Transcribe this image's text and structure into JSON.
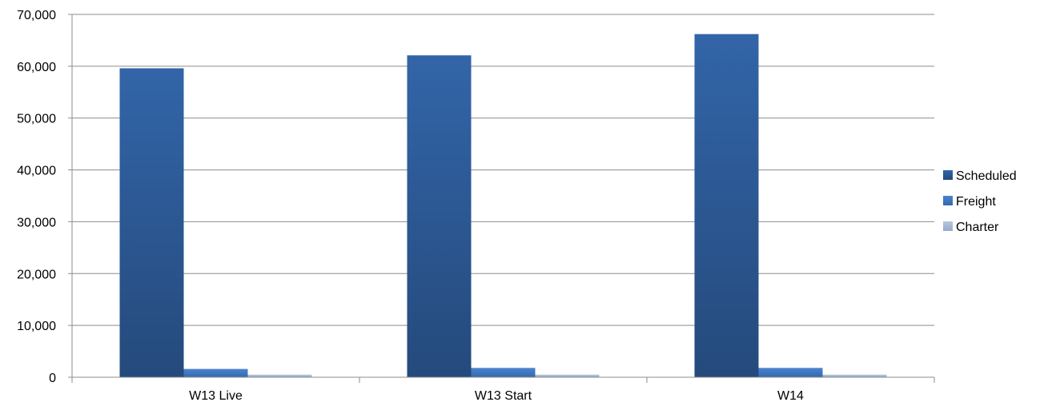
{
  "chart_data": {
    "type": "bar",
    "categories": [
      "W13 Live",
      "W13 Start",
      "W14"
    ],
    "series": [
      {
        "name": "Scheduled",
        "values": [
          59600,
          62100,
          66200
        ],
        "color": "#2F5C9A"
      },
      {
        "name": "Freight",
        "values": [
          1600,
          1800,
          1800
        ],
        "color": "#3E78C4"
      },
      {
        "name": "Charter",
        "values": [
          500,
          500,
          500
        ],
        "color": "#A5B7D6"
      }
    ],
    "title": "",
    "xlabel": "",
    "ylabel": "",
    "ylim": [
      0,
      70000
    ],
    "yticks": [
      0,
      10000,
      20000,
      30000,
      40000,
      50000,
      60000,
      70000
    ],
    "ytick_labels": [
      "0",
      "10,000",
      "20,000",
      "30,000",
      "40,000",
      "50,000",
      "60,000",
      "70,000"
    ],
    "grid": true,
    "legend": "right"
  }
}
